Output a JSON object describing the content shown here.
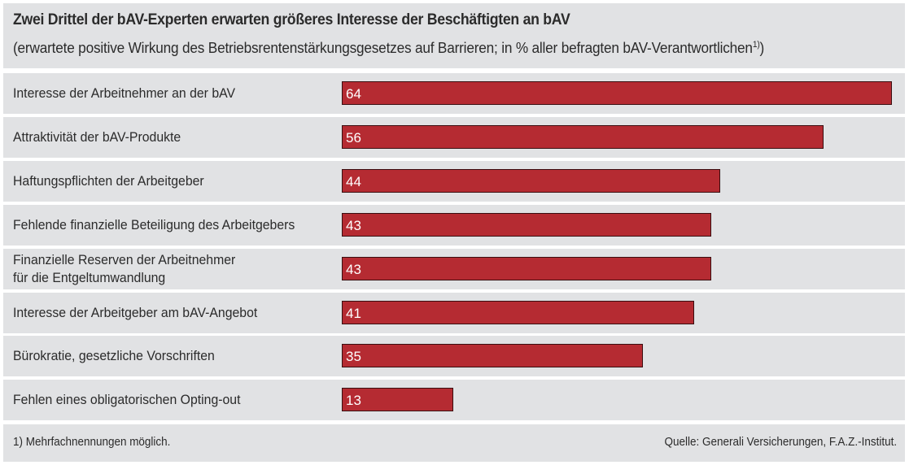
{
  "chart_data": {
    "type": "bar",
    "orientation": "horizontal",
    "title": "Zwei Drittel der bAV-Experten erwarten größeres Interesse der Beschäftigten an bAV",
    "subtitle": "(erwartete positive Wirkung des Betriebsrentenstärkungsgesetzes auf Barrieren; in % aller befragten bAV-Verantwortlichen",
    "subtitle_sup": "1)",
    "subtitle_end": ")",
    "xlabel": "",
    "ylabel": "",
    "xlim": [
      0,
      64
    ],
    "grid": false,
    "legend": "none",
    "bar_color": "#b52b32",
    "categories": [
      "Interesse der Arbeitnehmer an der bAV",
      "Attraktivität der bAV-Produkte",
      "Haftungspflichten der Arbeitgeber",
      "Fehlende finanzielle Beteiligung des Arbeitgebers",
      "Finanzielle Reserven der Arbeitnehmer\nfür die Entgeltumwandlung",
      "Interesse der Arbeitgeber am bAV-Angebot",
      "Bürokratie, gesetzliche Vorschriften",
      "Fehlen eines obligatorischen Opting-out"
    ],
    "values": [
      64,
      56,
      44,
      43,
      43,
      41,
      35,
      13
    ],
    "footnote": "1) Mehrfachnennungen möglich.",
    "source": "Quelle: Generali Versicherungen, F.A.Z.-Institut."
  }
}
